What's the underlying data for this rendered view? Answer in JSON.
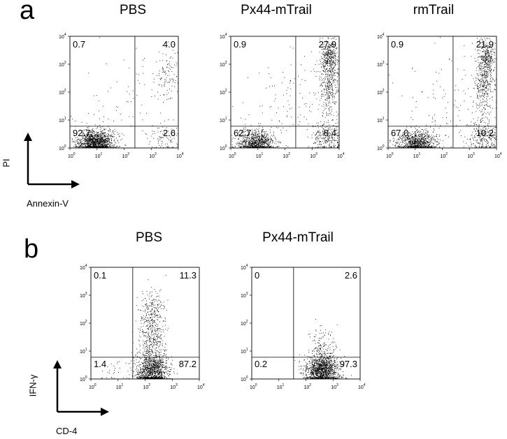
{
  "panels": {
    "a": {
      "letter": "a",
      "y_label": "PI",
      "x_label": "Annexin-V"
    },
    "b": {
      "letter": "b",
      "y_label": "IFN-γ",
      "x_label": "CD-4"
    }
  },
  "chart_data": [
    {
      "type": "scatter",
      "title": "PBS",
      "xlabel": "Annexin-V",
      "ylabel": "PI",
      "scale": "log10",
      "xlim": [
        1,
        10000
      ],
      "ylim": [
        1,
        10000
      ],
      "gate": [
        250,
        6
      ],
      "quadrants": {
        "upper_left": "0.7",
        "upper_right": "4.0",
        "lower_left": "92.7",
        "lower_right": "2.6"
      }
    },
    {
      "type": "scatter",
      "title": "Px44-mTrail",
      "xlabel": "Annexin-V",
      "ylabel": "PI",
      "scale": "log10",
      "xlim": [
        1,
        10000
      ],
      "ylim": [
        1,
        10000
      ],
      "gate": [
        250,
        6
      ],
      "quadrants": {
        "upper_left": "0.9",
        "upper_right": "27.9",
        "lower_left": "62.7",
        "lower_right": "8.4"
      }
    },
    {
      "type": "scatter",
      "title": "rmTrail",
      "xlabel": "Annexin-V",
      "ylabel": "PI",
      "scale": "log10",
      "xlim": [
        1,
        10000
      ],
      "ylim": [
        1,
        10000
      ],
      "gate": [
        250,
        6
      ],
      "quadrants": {
        "upper_left": "0.9",
        "upper_right": "21.9",
        "lower_left": "67.0",
        "lower_right": "10.2"
      }
    },
    {
      "type": "scatter",
      "title": "PBS",
      "xlabel": "CD-4",
      "ylabel": "IFN-γ",
      "scale": "log10",
      "xlim": [
        1,
        10000
      ],
      "ylim": [
        1,
        10000
      ],
      "gate": [
        35,
        6
      ],
      "quadrants": {
        "upper_left": "0.1",
        "upper_right": "11.3",
        "lower_left": "1.4",
        "lower_right": "87.2"
      }
    },
    {
      "type": "scatter",
      "title": "Px44-mTrail",
      "xlabel": "CD-4",
      "ylabel": "IFN-γ",
      "scale": "log10",
      "xlim": [
        1,
        10000
      ],
      "ylim": [
        1,
        10000
      ],
      "gate": [
        35,
        6
      ],
      "quadrants": {
        "upper_left": "0",
        "upper_right": "2.6",
        "lower_left": "0.2",
        "lower_right": "97.3"
      }
    }
  ]
}
